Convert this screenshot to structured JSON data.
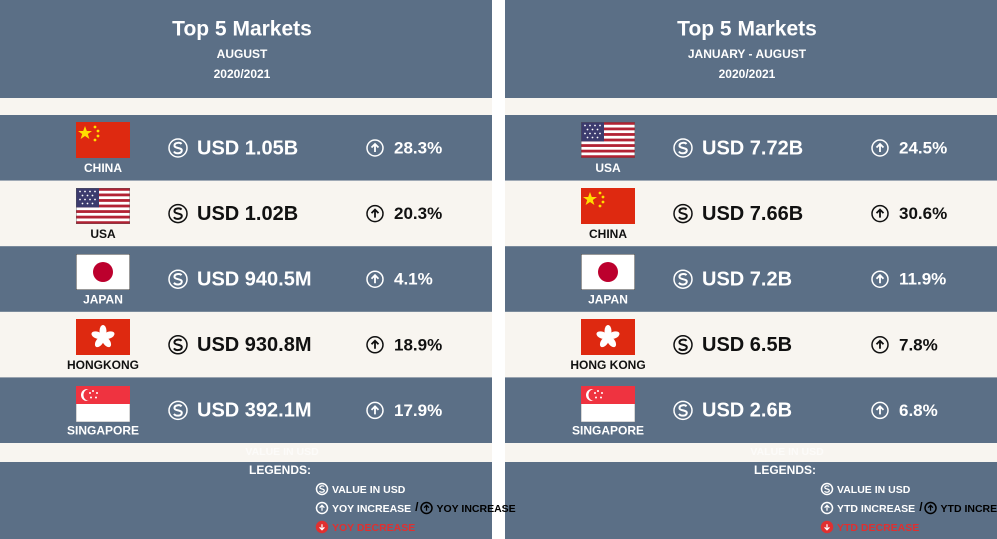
{
  "panels": [
    {
      "title": "Top 5 Markets",
      "period": "AUGUST",
      "years": "2020/2021",
      "rows": [
        {
          "country": "CHINA",
          "value": "USD 1.05B",
          "change": "28.3%"
        },
        {
          "country": "USA",
          "value": "USD 1.02B",
          "change": "20.3%"
        },
        {
          "country": "JAPAN",
          "value": "USD 940.5M",
          "change": "4.1%"
        },
        {
          "country": "HONGKONG",
          "value": "USD 930.8M",
          "change": "18.9%"
        },
        {
          "country": "SINGAPORE",
          "value": "USD 392.1M",
          "change": "17.9%"
        }
      ],
      "legend": {
        "faded": "VALUE IN USD",
        "heading": "LEGENDS:",
        "value_item": "VALUE IN USD",
        "increase_item": "YOY INCREASE",
        "separator": "/",
        "increase_item_alt": "YOY INCREASE",
        "decrease_item": "YOY DECREASE"
      }
    },
    {
      "title": "Top 5 Markets",
      "period": "JANUARY - AUGUST",
      "years": "2020/2021",
      "rows": [
        {
          "country": "USA",
          "value": "USD 7.72B",
          "change": "24.5%"
        },
        {
          "country": "CHINA",
          "value": "USD 7.66B",
          "change": "30.6%"
        },
        {
          "country": "JAPAN",
          "value": "USD 7.2B",
          "change": "11.9%"
        },
        {
          "country": "HONG KONG",
          "value": "USD 6.5B",
          "change": "7.8%"
        },
        {
          "country": "SINGAPORE",
          "value": "USD 2.6B",
          "change": "6.8%"
        }
      ],
      "legend": {
        "faded": "VALUE IN USD",
        "heading": "LEGENDS:",
        "value_item": "VALUE IN USD",
        "increase_item": "YTD INCREASE",
        "separator": "/",
        "increase_item_alt": "YTD INCREASE",
        "decrease_item": "YTD DECREASE"
      }
    }
  ]
}
